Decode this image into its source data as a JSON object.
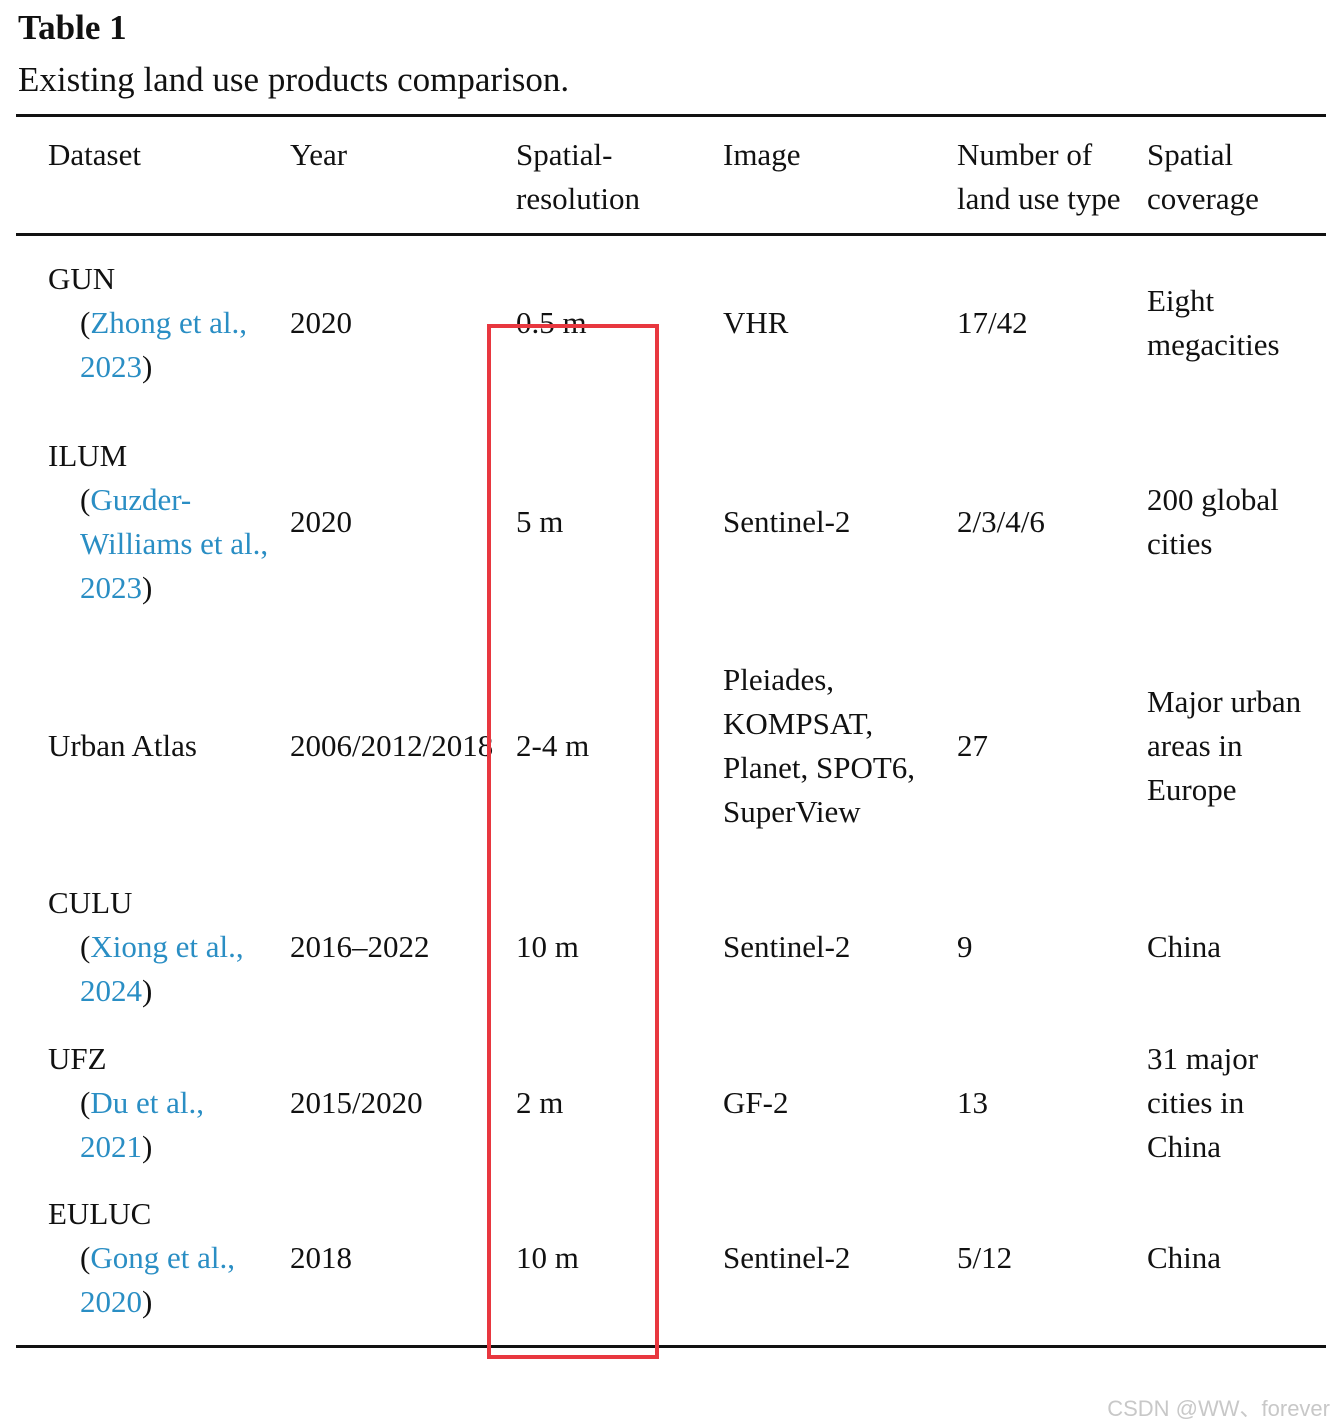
{
  "caption": {
    "label": "Table 1",
    "title": "Existing land use products comparison."
  },
  "table": {
    "header": [
      "Dataset",
      "Year",
      "Spatial-resolution",
      "Image",
      "Number of land use type",
      "Spatial coverage"
    ],
    "rows": [
      {
        "dataset": {
          "name": "GUN",
          "citation": [
            "(",
            "Zhong et al., 2023",
            ")"
          ]
        },
        "cells": [
          "2020",
          "0.5 m",
          "VHR",
          "17/42",
          "Eight megacities"
        ]
      },
      {
        "dataset": {
          "name": "ILUM",
          "citation": [
            "(",
            "Guzder-Williams et al., 2023",
            ")"
          ]
        },
        "cells": [
          "2020",
          "5 m",
          "Sentinel-2",
          "2/3/4/6",
          "200 global cities"
        ]
      },
      {
        "dataset": {
          "name": "Urban Atlas"
        },
        "cells": [
          "2006/2012/2018",
          "2-4 m",
          "Pleiades, KOMPSAT, Planet, SPOT6, SuperView",
          "27",
          "Major urban areas in Europe"
        ]
      },
      {
        "dataset": {
          "name": "CULU",
          "citation": [
            "(",
            "Xiong et al., 2024",
            ")"
          ]
        },
        "cells": [
          "2016–2022",
          "10 m",
          "Sentinel-2",
          "9",
          "China"
        ]
      },
      {
        "dataset": {
          "name": "UFZ",
          "citation": [
            "(",
            "Du et al., 2021",
            ")"
          ]
        },
        "cells": [
          "2015/2020",
          "2 m",
          "GF-2",
          "13",
          "31 major cities in China"
        ]
      },
      {
        "dataset": {
          "name": "EULUC",
          "citation": [
            "(",
            "Gong et al., 2020",
            ")"
          ]
        },
        "cells": [
          "2018",
          "10 m",
          "Sentinel-2",
          "5/12",
          "China"
        ]
      }
    ]
  },
  "watermark": "CSDN @WW、forever"
}
